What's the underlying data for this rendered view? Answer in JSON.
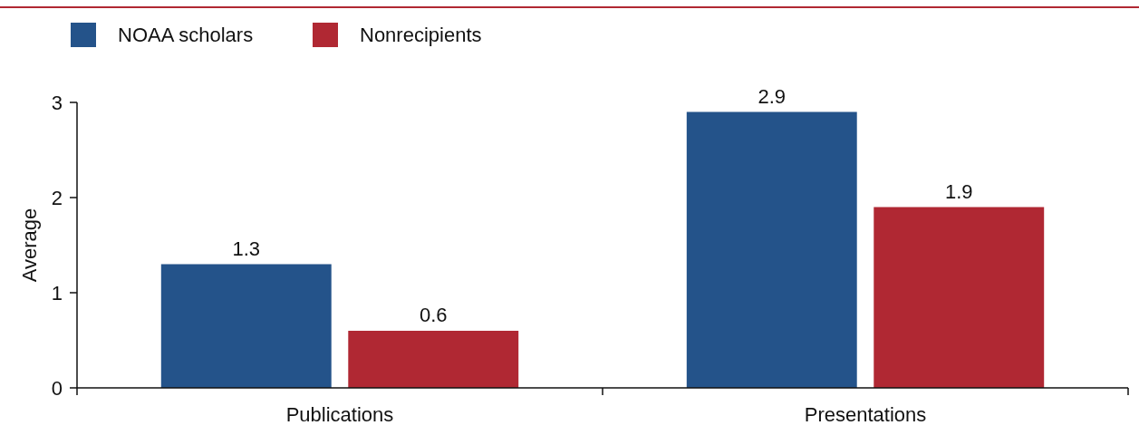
{
  "chart_data": {
    "type": "bar",
    "ylabel": "Average",
    "categories": [
      "Publications",
      "Presentations"
    ],
    "series": [
      {
        "name": "NOAA scholars",
        "color": "#24538a",
        "values": [
          1.3,
          2.9
        ]
      },
      {
        "name": "Nonrecipients",
        "color": "#b02833",
        "values": [
          0.6,
          1.9
        ]
      }
    ],
    "ylim": [
      0,
      3
    ],
    "yticks": [
      0,
      1,
      2,
      3
    ],
    "grid": false,
    "legend": "top left",
    "data_labels": true
  }
}
